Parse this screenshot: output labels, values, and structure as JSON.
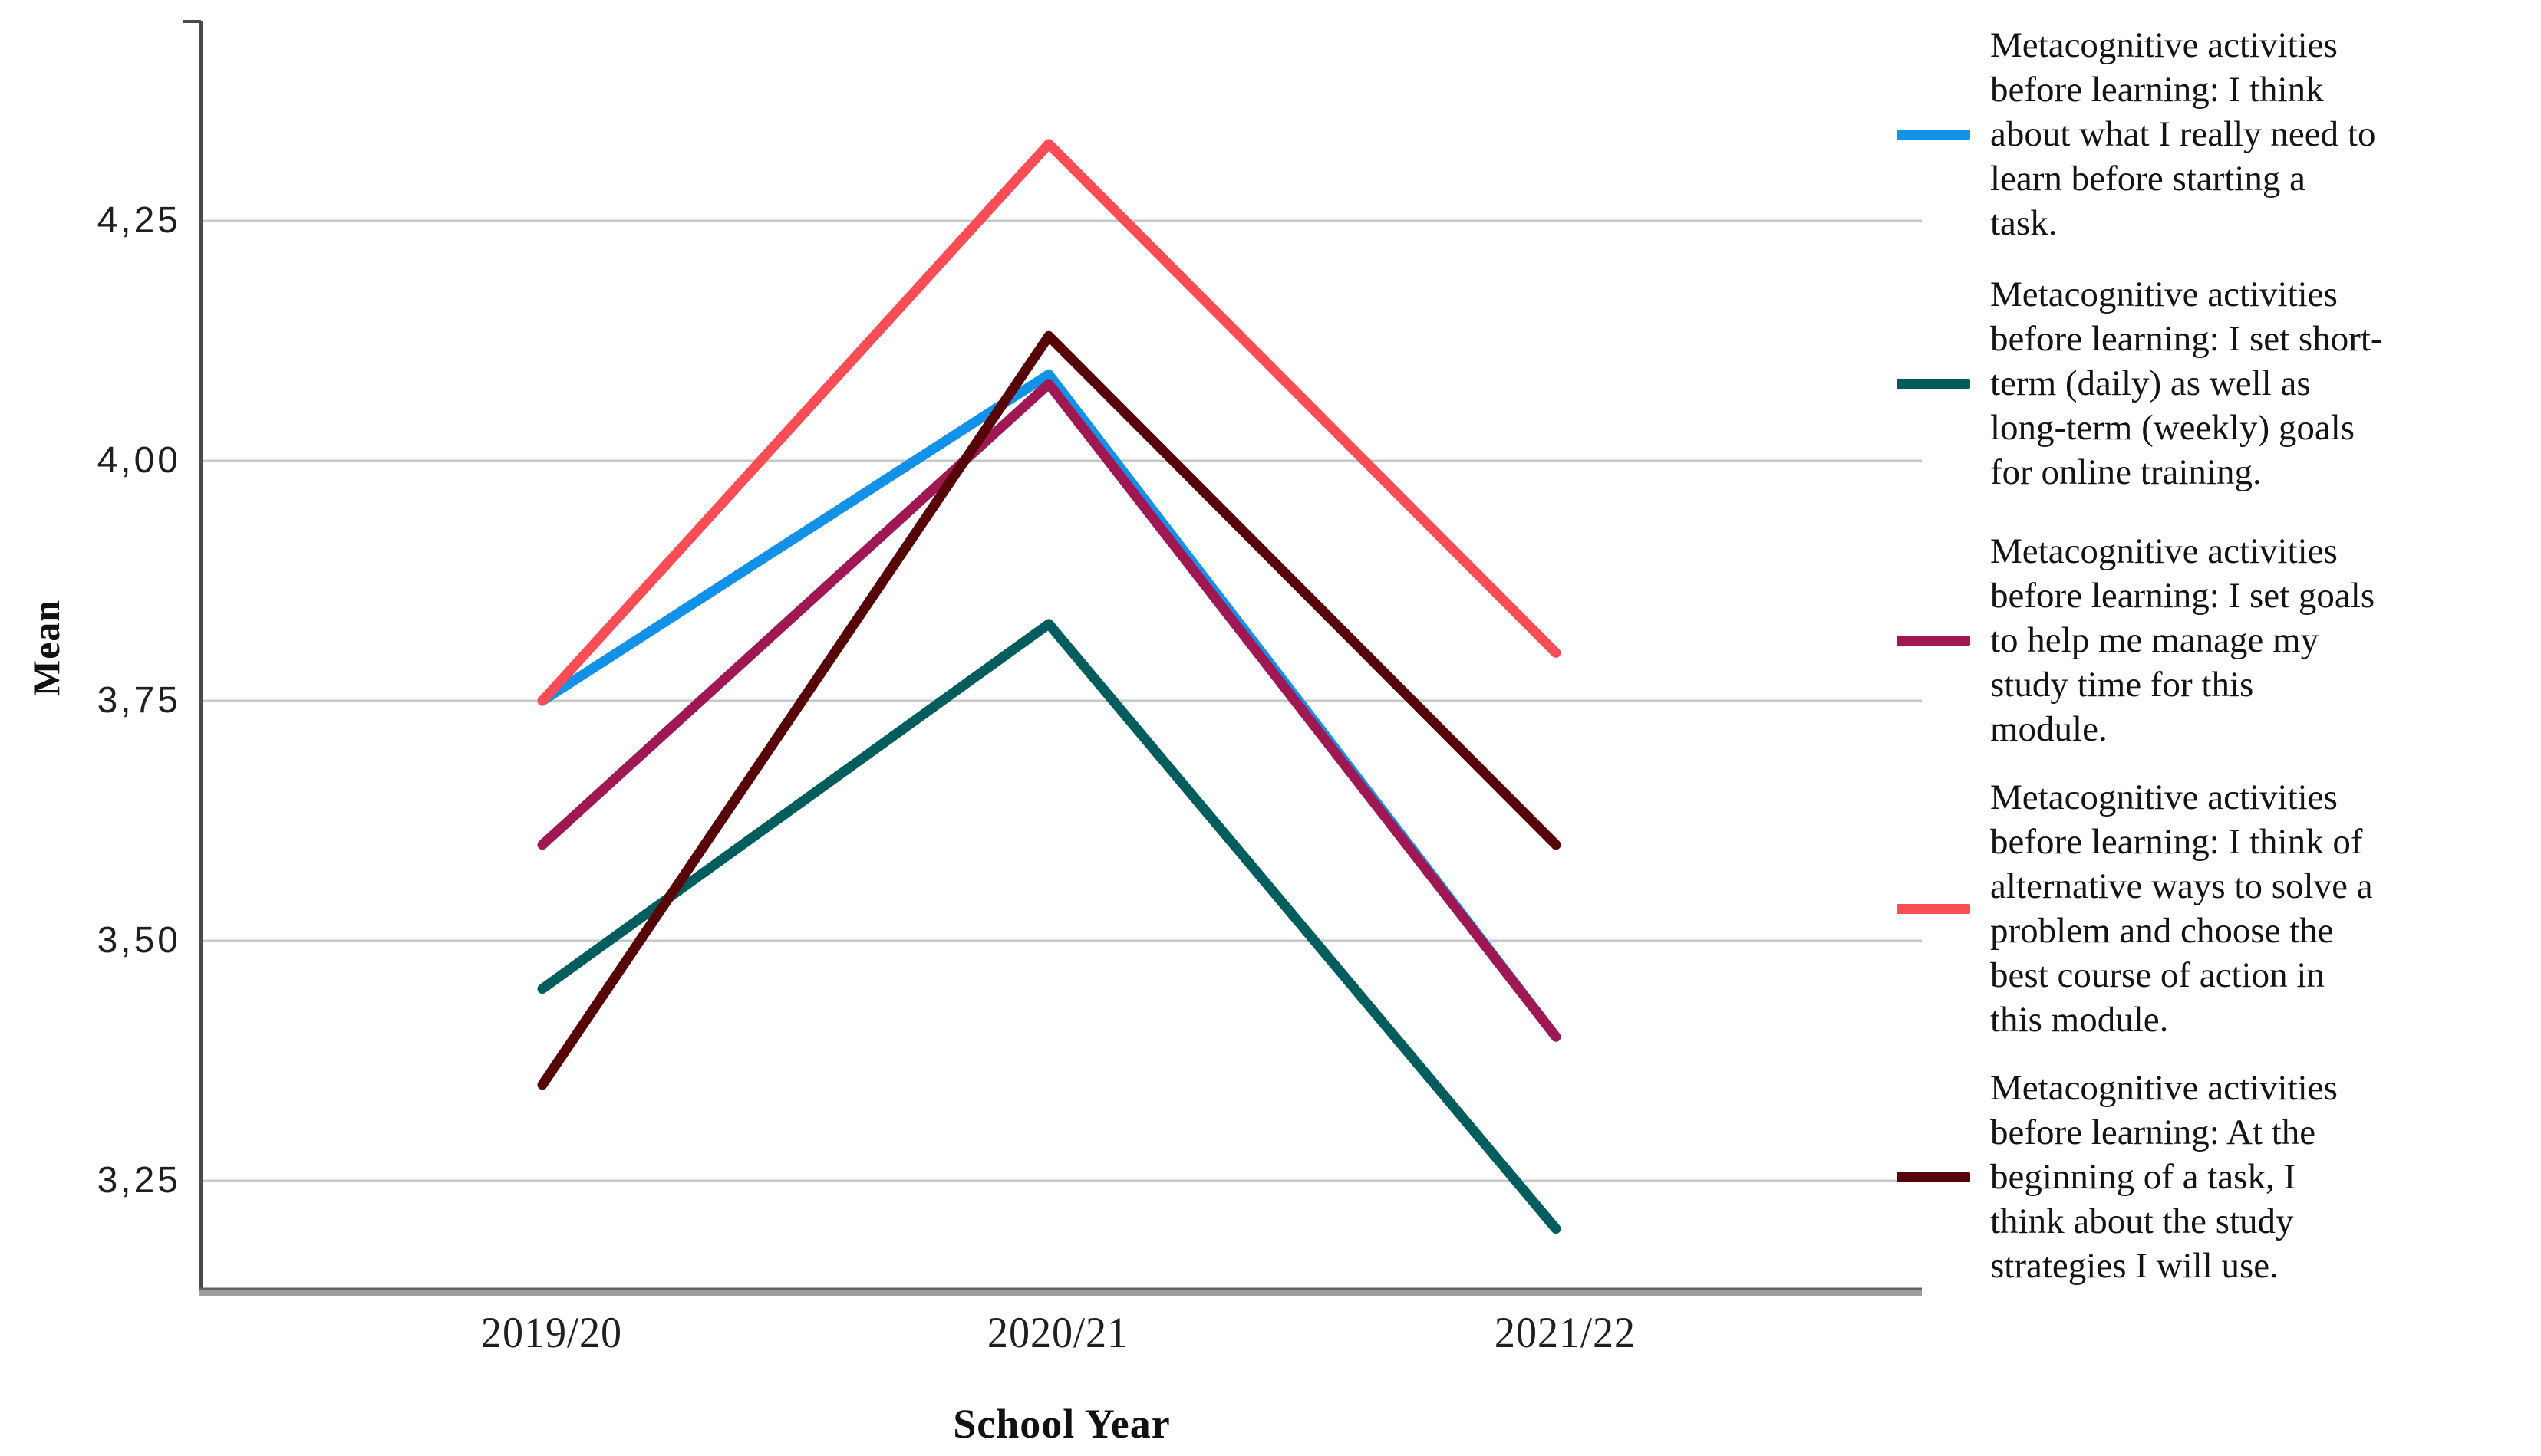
{
  "chart_data": {
    "type": "line",
    "title": "",
    "xlabel": "School Year",
    "ylabel": "Mean",
    "categories": [
      "2019/20",
      "2020/21",
      "2021/22"
    ],
    "y_axis": {
      "decimal_separator": ",",
      "ticks": [
        {
          "label": "4,25",
          "value": 4.25
        },
        {
          "label": "4,00",
          "value": 4.0
        },
        {
          "label": "3,75",
          "value": 3.75
        },
        {
          "label": "3,50",
          "value": 3.5
        },
        {
          "label": "3,25",
          "value": 3.25
        }
      ],
      "range": [
        3.13,
        4.46
      ]
    },
    "grid": "horizontal-only",
    "legend_position": "right",
    "axis_colors": {
      "gridline": "#C8C8C8",
      "y_axis": "#4A4A4A",
      "x_axis_band": "#9E9E9E",
      "x_axis_edge": "#646464"
    },
    "series": [
      {
        "name": "Metacognitive activities before learning: I think about what I really need to learn before starting a task.",
        "color": "#1192E8",
        "values": [
          3.75,
          4.09,
          3.4
        ],
        "note": "overlaps magenta series on descent 2020/21 to 2021/22",
        "legend_lines": [
          "Metacognitive activities",
          "before learning: I think",
          "about what I really need to",
          "learn before starting a",
          "task."
        ]
      },
      {
        "name": "Metacognitive activities before learning: I set short-term (daily) as well as long-term (weekly) goals for online training.",
        "color": "#005D5D",
        "values": [
          3.45,
          3.83,
          3.2
        ],
        "note": "",
        "legend_lines": [
          "Metacognitive activities",
          "before learning: I set short-",
          "term (daily) as well as",
          "long-term (weekly) goals",
          "for online training."
        ]
      },
      {
        "name": "Metacognitive activities before learning: I set goals to help me manage my study time for this module.",
        "color": "#9F1853",
        "values": [
          3.6,
          4.08,
          3.4
        ],
        "note": "",
        "legend_lines": [
          "Metacognitive activities",
          "before learning: I set goals",
          "to help me manage my",
          "study time for this",
          "module."
        ]
      },
      {
        "name": "Metacognitive activities before learning: I think of alternative ways to solve a problem and choose the best course of action in this module.",
        "color": "#FA4D56",
        "values": [
          3.75,
          4.33,
          3.8
        ],
        "note": "",
        "legend_lines": [
          "Metacognitive activities",
          "before learning: I think of",
          "alternative ways to solve a",
          "problem and choose the",
          "best course of action in",
          "this module."
        ]
      },
      {
        "name": "Metacognitive activities before learning: At the beginning of a task, I think about the study strategies I will use.",
        "color": "#570408",
        "values": [
          3.35,
          4.13,
          3.6
        ],
        "note": "",
        "legend_lines": [
          "Metacognitive activities",
          "before learning: At the",
          "beginning of a task, I",
          "think about the study",
          "strategies I will use."
        ]
      }
    ]
  }
}
